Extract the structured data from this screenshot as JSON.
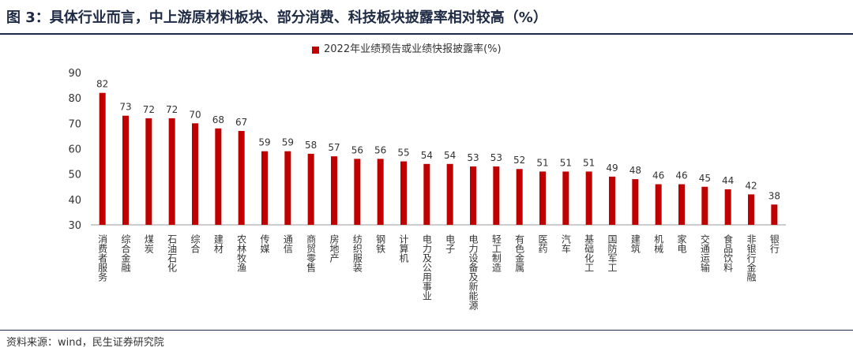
{
  "figure": {
    "title": "图 3：具体行业而言，中上游原材料板块、部分消费、科技板块披露率相对较高（%）",
    "source": "资料来源：wind，民生证券研究院"
  },
  "colors": {
    "bar": "#C00000",
    "axis": "#999999",
    "title": "#1f2a44"
  },
  "chart_data": {
    "type": "bar",
    "title": "",
    "xlabel": "",
    "ylabel": "",
    "ylim": [
      30,
      90
    ],
    "yticks": [
      30,
      40,
      50,
      60,
      70,
      80,
      90
    ],
    "grid": false,
    "legend_position": "top-center",
    "categories": [
      "消费者服务",
      "综合金融",
      "煤炭",
      "石油石化",
      "综合",
      "建材",
      "农林牧渔",
      "传媒",
      "通信",
      "商贸零售",
      "房地产",
      "纺织服装",
      "钢铁",
      "计算机",
      "电力及公用事业",
      "电子",
      "电力设备及新能源",
      "轻工制造",
      "有色金属",
      "医药",
      "汽车",
      "基础化工",
      "国防军工",
      "建筑",
      "机械",
      "家电",
      "交通运输",
      "食品饮料",
      "非银行金融",
      "银行"
    ],
    "series": [
      {
        "name": "2022年业绩预告或业绩快报披露率(%)",
        "values": [
          82,
          73,
          72,
          72,
          70,
          68,
          67,
          59,
          59,
          58,
          57,
          56,
          56,
          55,
          54,
          54,
          53,
          53,
          52,
          51,
          51,
          51,
          49,
          48,
          46,
          46,
          45,
          44,
          42,
          38
        ]
      }
    ]
  }
}
